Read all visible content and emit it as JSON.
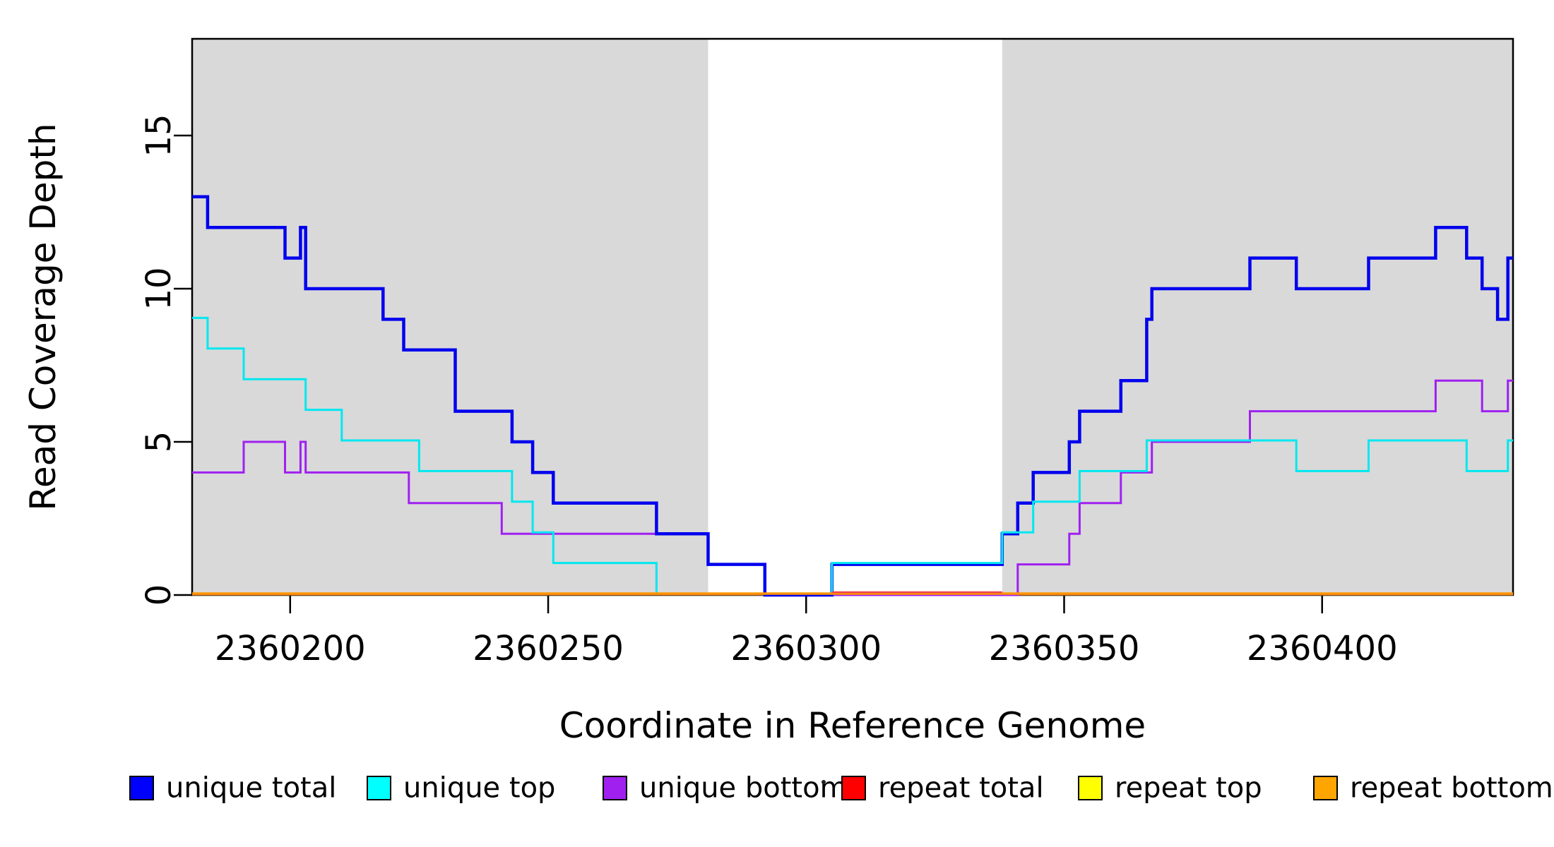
{
  "chart_data": {
    "type": "line",
    "subtype": "step-coverage",
    "title": "",
    "xlabel": "Coordinate in Reference Genome",
    "ylabel": "Read Coverage Depth",
    "xlim": [
      2360181,
      2360437
    ],
    "ylim": [
      0,
      18
    ],
    "x_ticks": [
      2360200,
      2360250,
      2360300,
      2360350,
      2360400
    ],
    "y_ticks": [
      0,
      5,
      10,
      15
    ],
    "grid": false,
    "legend_position": "bottom",
    "shade_color": "#D9D9D9",
    "shaded_regions": [
      {
        "from": 2360181,
        "to": 2360281
      },
      {
        "from": 2360338,
        "to": 2360437
      }
    ],
    "x_end": 2360437,
    "series": [
      {
        "name": "unique total",
        "color": "#0000EE",
        "legend_color": "#0000FF",
        "width": 4.5,
        "points": [
          [
            2360181,
            13
          ],
          [
            2360184,
            12
          ],
          [
            2360199,
            11
          ],
          [
            2360202,
            12
          ],
          [
            2360203,
            10
          ],
          [
            2360218,
            9
          ],
          [
            2360222,
            8
          ],
          [
            2360232,
            6
          ],
          [
            2360243,
            5
          ],
          [
            2360247,
            4
          ],
          [
            2360251,
            3
          ],
          [
            2360271,
            2
          ],
          [
            2360281,
            1
          ],
          [
            2360292,
            0
          ],
          [
            2360305,
            1
          ],
          [
            2360338,
            2
          ],
          [
            2360341,
            3
          ],
          [
            2360344,
            4
          ],
          [
            2360351,
            5
          ],
          [
            2360353,
            6
          ],
          [
            2360361,
            7
          ],
          [
            2360366,
            9
          ],
          [
            2360367,
            10
          ],
          [
            2360386,
            11
          ],
          [
            2360395,
            10
          ],
          [
            2360409,
            11
          ],
          [
            2360422,
            12
          ],
          [
            2360428,
            11
          ],
          [
            2360431,
            10
          ],
          [
            2360434,
            9
          ],
          [
            2360436,
            11
          ]
        ]
      },
      {
        "name": "unique top",
        "color": "#00E8F0",
        "legend_color": "#00FFFF",
        "width": 3,
        "points": [
          [
            2360181,
            9
          ],
          [
            2360184,
            8
          ],
          [
            2360191,
            7
          ],
          [
            2360203,
            6
          ],
          [
            2360210,
            5
          ],
          [
            2360225,
            4
          ],
          [
            2360243,
            3
          ],
          [
            2360247,
            2
          ],
          [
            2360251,
            1
          ],
          [
            2360271,
            0
          ],
          [
            2360305,
            1
          ],
          [
            2360338,
            2
          ],
          [
            2360344,
            3
          ],
          [
            2360353,
            4
          ],
          [
            2360366,
            5
          ],
          [
            2360395,
            4
          ],
          [
            2360409,
            5
          ],
          [
            2360428,
            4
          ],
          [
            2360436,
            5
          ]
        ]
      },
      {
        "name": "unique bottom",
        "color": "#A020F0",
        "legend_color": "#A020F0",
        "width": 3,
        "points": [
          [
            2360181,
            4
          ],
          [
            2360191,
            5
          ],
          [
            2360199,
            4
          ],
          [
            2360202,
            5
          ],
          [
            2360203,
            4
          ],
          [
            2360223,
            3
          ],
          [
            2360241,
            2
          ],
          [
            2360281,
            1
          ],
          [
            2360292,
            0
          ],
          [
            2360341,
            1
          ],
          [
            2360351,
            2
          ],
          [
            2360353,
            3
          ],
          [
            2360361,
            4
          ],
          [
            2360367,
            5
          ],
          [
            2360386,
            6
          ],
          [
            2360422,
            7
          ],
          [
            2360431,
            6
          ],
          [
            2360436,
            7
          ]
        ]
      },
      {
        "name": "repeat total",
        "color": "#EE4455",
        "legend_color": "#FF0000",
        "width": 2.5,
        "points": [
          [
            2360181,
            0
          ]
        ],
        "raised_segment": [
          2360305,
          2360338
        ]
      },
      {
        "name": "repeat top",
        "color": "#FFFF00",
        "legend_color": "#FFFF00",
        "width": 3,
        "points": [
          [
            2360181,
            0
          ]
        ]
      },
      {
        "name": "repeat bottom",
        "color": "#FF9500",
        "legend_color": "#FFA500",
        "width": 3.5,
        "points": [
          [
            2360181,
            0
          ]
        ]
      }
    ]
  },
  "legend": {
    "items": [
      {
        "label": "unique total",
        "color": "#0000FF"
      },
      {
        "label": "unique top",
        "color": "#00FFFF"
      },
      {
        "label": "unique bottom",
        "color": "#A020F0"
      },
      {
        "label": "repeat total",
        "color": "#FF0000"
      },
      {
        "label": "repeat top",
        "color": "#FFFF00"
      },
      {
        "label": "repeat bottom",
        "color": "#FFA500"
      }
    ],
    "stray_mark": "·"
  }
}
